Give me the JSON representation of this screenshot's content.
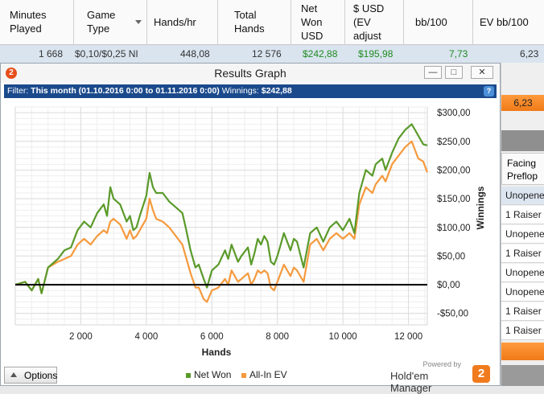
{
  "stats_table": {
    "headers": [
      {
        "label": "Minutes\nPlayed"
      },
      {
        "label": "Game\nType",
        "sortable": true
      },
      {
        "label": "Hands/hr"
      },
      {
        "label": "Total\nHands"
      },
      {
        "label": "Net\nWon\nUSD"
      },
      {
        "label": "$ USD\n(EV\nadjust"
      },
      {
        "label": "bb/100"
      },
      {
        "label": "EV bb/100"
      }
    ],
    "row": {
      "minutes": "1 668",
      "game_type": "$0,10/$0,25 NI",
      "hands_hr": "448,08",
      "total_hands": "12 576",
      "net_won": "$242,88",
      "ev_adjusted": "$195,98",
      "bb100": "7,73",
      "ev_bb100": "6,23"
    }
  },
  "right_panel": {
    "highlight_value": "6,23",
    "facing_label": "Facing\nPreflop",
    "items": [
      "Unopened",
      "1 Raiser",
      "Unopened",
      "1 Raiser",
      "Unopened",
      "Unopened",
      "1 Raiser",
      "1 Raiser"
    ]
  },
  "window": {
    "title": "Results Graph",
    "logo_text": "2",
    "buttons": {
      "minimize": "—",
      "maximize": "□",
      "close": "✕"
    },
    "filter": {
      "prefix": "Filter:",
      "value": "This month (01.10.2016 0:00 to 01.11.2016 0:00)",
      "winnings_label": "Winnings:",
      "winnings_value": "$242,88",
      "help": "?"
    },
    "options_label": "Options",
    "legend": {
      "net_won": "Net Won",
      "all_in_ev": "All-In EV"
    },
    "brand": {
      "powered_by": "Powered by",
      "name": "Hold'em Manager",
      "mark": "2"
    }
  },
  "colors": {
    "net_won": "#5a9a2a",
    "all_in_ev": "#f59a3e",
    "zero_line": "#000000",
    "filter_bar": "#1b4a8c",
    "highlight": "#f07a18"
  },
  "chart_data": {
    "type": "line",
    "xlabel": "Hands",
    "ylabel": "Winnings",
    "xlim": [
      0,
      12576
    ],
    "ylim": [
      -70,
      310
    ],
    "x_ticks": [
      2000,
      4000,
      6000,
      8000,
      10000,
      12000
    ],
    "x_tick_labels": [
      "2 000",
      "4 000",
      "6 000",
      "8 000",
      "10 000",
      "12 000"
    ],
    "y_ticks": [
      -50,
      0,
      50,
      100,
      150,
      200,
      250,
      300
    ],
    "y_tick_labels": [
      "-$50,00",
      "$0,00",
      "$50,00",
      "$100,00",
      "$150,00",
      "$200,00",
      "$250,00",
      "$300,00"
    ],
    "grid": true,
    "legend_position": "bottom-center",
    "series": [
      {
        "name": "Net Won",
        "color": "#5a9a2a",
        "points": [
          [
            0,
            0
          ],
          [
            300,
            5
          ],
          [
            500,
            -10
          ],
          [
            700,
            10
          ],
          [
            800,
            -15
          ],
          [
            1000,
            30
          ],
          [
            1300,
            45
          ],
          [
            1500,
            60
          ],
          [
            1700,
            65
          ],
          [
            1900,
            95
          ],
          [
            2100,
            110
          ],
          [
            2300,
            100
          ],
          [
            2500,
            125
          ],
          [
            2700,
            140
          ],
          [
            2800,
            120
          ],
          [
            2900,
            170
          ],
          [
            3000,
            150
          ],
          [
            3200,
            140
          ],
          [
            3400,
            110
          ],
          [
            3500,
            120
          ],
          [
            3600,
            95
          ],
          [
            3700,
            100
          ],
          [
            3800,
            120
          ],
          [
            4000,
            155
          ],
          [
            4100,
            195
          ],
          [
            4200,
            170
          ],
          [
            4300,
            160
          ],
          [
            4500,
            160
          ],
          [
            4700,
            145
          ],
          [
            4900,
            135
          ],
          [
            5100,
            125
          ],
          [
            5200,
            100
          ],
          [
            5350,
            60
          ],
          [
            5500,
            30
          ],
          [
            5600,
            35
          ],
          [
            5750,
            10
          ],
          [
            5850,
            -5
          ],
          [
            6000,
            25
          ],
          [
            6200,
            35
          ],
          [
            6400,
            60
          ],
          [
            6500,
            45
          ],
          [
            6600,
            70
          ],
          [
            6800,
            40
          ],
          [
            6900,
            50
          ],
          [
            7100,
            65
          ],
          [
            7200,
            35
          ],
          [
            7300,
            55
          ],
          [
            7400,
            80
          ],
          [
            7500,
            70
          ],
          [
            7600,
            85
          ],
          [
            7700,
            75
          ],
          [
            7800,
            40
          ],
          [
            7900,
            35
          ],
          [
            8000,
            50
          ],
          [
            8100,
            70
          ],
          [
            8200,
            90
          ],
          [
            8400,
            60
          ],
          [
            8500,
            80
          ],
          [
            8600,
            75
          ],
          [
            8800,
            30
          ],
          [
            9000,
            90
          ],
          [
            9200,
            100
          ],
          [
            9400,
            75
          ],
          [
            9600,
            100
          ],
          [
            9800,
            110
          ],
          [
            10000,
            95
          ],
          [
            10200,
            115
          ],
          [
            10350,
            90
          ],
          [
            10500,
            160
          ],
          [
            10700,
            200
          ],
          [
            10900,
            190
          ],
          [
            11000,
            210
          ],
          [
            11200,
            220
          ],
          [
            11300,
            200
          ],
          [
            11500,
            230
          ],
          [
            11700,
            255
          ],
          [
            11900,
            270
          ],
          [
            12100,
            280
          ],
          [
            12200,
            270
          ],
          [
            12300,
            260
          ],
          [
            12450,
            245
          ],
          [
            12576,
            243
          ]
        ]
      },
      {
        "name": "All-In EV",
        "color": "#f59a3e",
        "points": [
          [
            0,
            0
          ],
          [
            300,
            5
          ],
          [
            500,
            -10
          ],
          [
            700,
            10
          ],
          [
            800,
            -15
          ],
          [
            1000,
            30
          ],
          [
            1300,
            40
          ],
          [
            1500,
            45
          ],
          [
            1700,
            50
          ],
          [
            1900,
            70
          ],
          [
            2100,
            80
          ],
          [
            2300,
            70
          ],
          [
            2500,
            85
          ],
          [
            2700,
            95
          ],
          [
            2800,
            90
          ],
          [
            2900,
            110
          ],
          [
            3000,
            115
          ],
          [
            3200,
            105
          ],
          [
            3400,
            80
          ],
          [
            3500,
            95
          ],
          [
            3600,
            80
          ],
          [
            3700,
            85
          ],
          [
            3800,
            95
          ],
          [
            4000,
            115
          ],
          [
            4100,
            150
          ],
          [
            4200,
            130
          ],
          [
            4300,
            115
          ],
          [
            4500,
            110
          ],
          [
            4700,
            100
          ],
          [
            4900,
            85
          ],
          [
            5100,
            70
          ],
          [
            5200,
            50
          ],
          [
            5350,
            20
          ],
          [
            5500,
            -5
          ],
          [
            5600,
            -5
          ],
          [
            5750,
            -25
          ],
          [
            5850,
            -30
          ],
          [
            6000,
            -10
          ],
          [
            6200,
            -5
          ],
          [
            6400,
            10
          ],
          [
            6500,
            0
          ],
          [
            6600,
            25
          ],
          [
            6800,
            5
          ],
          [
            6900,
            10
          ],
          [
            7100,
            20
          ],
          [
            7200,
            0
          ],
          [
            7300,
            10
          ],
          [
            7400,
            25
          ],
          [
            7500,
            20
          ],
          [
            7600,
            25
          ],
          [
            7700,
            20
          ],
          [
            7800,
            -5
          ],
          [
            7900,
            -10
          ],
          [
            8000,
            5
          ],
          [
            8100,
            20
          ],
          [
            8200,
            35
          ],
          [
            8400,
            15
          ],
          [
            8500,
            30
          ],
          [
            8600,
            25
          ],
          [
            8800,
            5
          ],
          [
            9000,
            70
          ],
          [
            9200,
            80
          ],
          [
            9400,
            60
          ],
          [
            9600,
            80
          ],
          [
            9800,
            90
          ],
          [
            10000,
            80
          ],
          [
            10200,
            90
          ],
          [
            10350,
            80
          ],
          [
            10500,
            140
          ],
          [
            10700,
            170
          ],
          [
            10900,
            160
          ],
          [
            11000,
            175
          ],
          [
            11200,
            190
          ],
          [
            11300,
            180
          ],
          [
            11500,
            210
          ],
          [
            11700,
            225
          ],
          [
            11900,
            240
          ],
          [
            12100,
            250
          ],
          [
            12200,
            235
          ],
          [
            12300,
            220
          ],
          [
            12450,
            215
          ],
          [
            12576,
            196
          ]
        ]
      }
    ]
  }
}
